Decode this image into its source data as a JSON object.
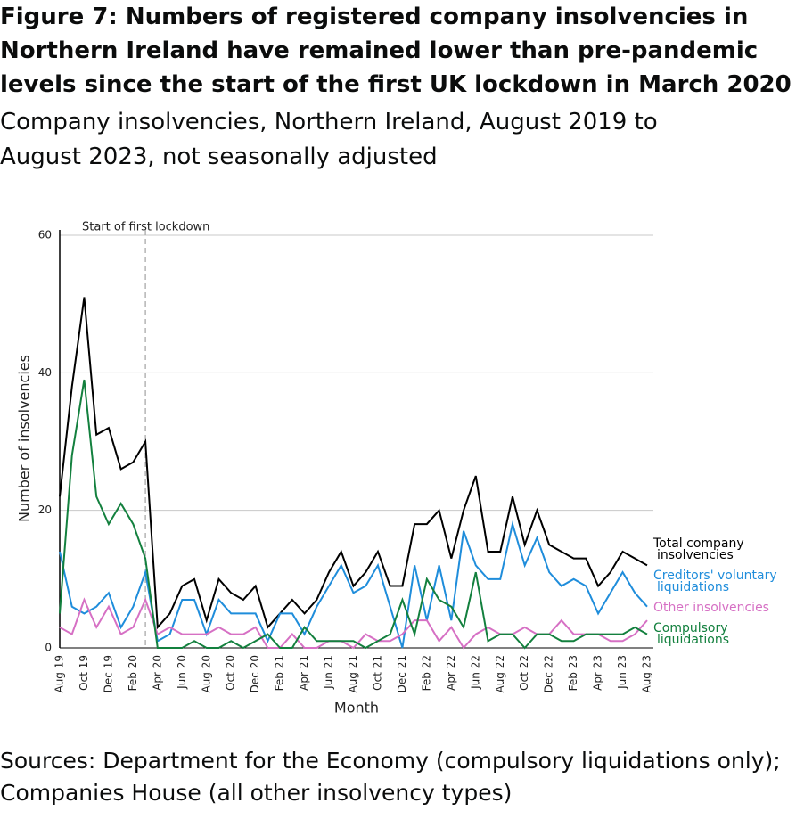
{
  "chart_data": {
    "type": "line",
    "title": "Figure 7: Numbers of registered company insolvencies in Northern Ireland have remained lower than pre-pandemic levels since the start of the first UK lockdown in March 2020",
    "subtitle": "Company insolvencies, Northern Ireland, August 2019 to August 2023, not seasonally adjusted",
    "source": "Sources: Department for the Economy (compulsory liquidations only); Companies House (all other insolvency types)",
    "x_label": "Month",
    "y_label": "Number of insolvencies",
    "categories": [
      "Aug 19",
      null,
      "Oct 19",
      null,
      "Dec 19",
      null,
      "Feb 20",
      null,
      "Apr 20",
      null,
      "Jun 20",
      null,
      "Aug 20",
      null,
      "Oct 20",
      null,
      "Dec 20",
      null,
      "Feb 21",
      null,
      "Apr 21",
      null,
      "Jun 21",
      null,
      "Aug 21",
      null,
      "Oct 21",
      null,
      "Dec 21",
      null,
      "Feb 22",
      null,
      "Apr 22",
      null,
      "Jun 22",
      null,
      "Aug 22",
      null,
      "Oct 22",
      null,
      "Dec 22",
      null,
      "Feb 23",
      null,
      "Apr 23",
      null,
      "Jun 23",
      null,
      "Aug 23"
    ],
    "series": [
      {
        "name": "Total company insolvencies",
        "color": "#000000",
        "values": [
          22,
          38,
          51,
          31,
          32,
          26,
          27,
          30,
          3,
          5,
          9,
          10,
          4,
          10,
          8,
          7,
          9,
          3,
          5,
          7,
          5,
          7,
          11,
          14,
          9,
          11,
          14,
          9,
          9,
          18,
          18,
          20,
          13,
          20,
          25,
          14,
          14,
          22,
          15,
          20,
          15,
          14,
          13,
          13,
          9,
          11,
          14,
          13,
          12
        ]
      },
      {
        "name": "Creditors' voluntary liquidations",
        "color": "#1f8ddb",
        "values": [
          14,
          6,
          5,
          6,
          8,
          3,
          6,
          11,
          1,
          2,
          7,
          7,
          2,
          7,
          5,
          5,
          5,
          1,
          5,
          5,
          2,
          6,
          9,
          12,
          8,
          9,
          12,
          6,
          0,
          12,
          4,
          12,
          4,
          17,
          12,
          10,
          10,
          18,
          12,
          16,
          11,
          9,
          10,
          9,
          5,
          8,
          11,
          8,
          6
        ]
      },
      {
        "name": "Other insolvencies",
        "color": "#d670c4",
        "values": [
          3,
          2,
          7,
          3,
          6,
          2,
          3,
          7,
          2,
          3,
          2,
          2,
          2,
          3,
          2,
          2,
          3,
          0,
          0,
          2,
          0,
          0,
          1,
          1,
          0,
          2,
          1,
          1,
          2,
          4,
          4,
          1,
          3,
          0,
          2,
          3,
          2,
          2,
          3,
          2,
          2,
          4,
          2,
          2,
          2,
          1,
          1,
          2,
          4
        ]
      },
      {
        "name": "Compulsory liquidations",
        "color": "#13803e",
        "values": [
          5,
          28,
          39,
          22,
          18,
          21,
          18,
          13,
          0,
          0,
          0,
          1,
          0,
          0,
          1,
          0,
          1,
          2,
          0,
          0,
          3,
          1,
          1,
          1,
          1,
          0,
          1,
          2,
          7,
          2,
          10,
          7,
          6,
          3,
          11,
          1,
          2,
          2,
          0,
          2,
          2,
          1,
          1,
          2,
          2,
          2,
          2,
          3,
          2
        ]
      }
    ],
    "ylim": [
      0,
      60
    ],
    "yticks": [
      0,
      20,
      40,
      60
    ],
    "grid": true,
    "annotations": [
      {
        "text": "Start of first lockdown",
        "category_index": 7
      }
    ]
  }
}
